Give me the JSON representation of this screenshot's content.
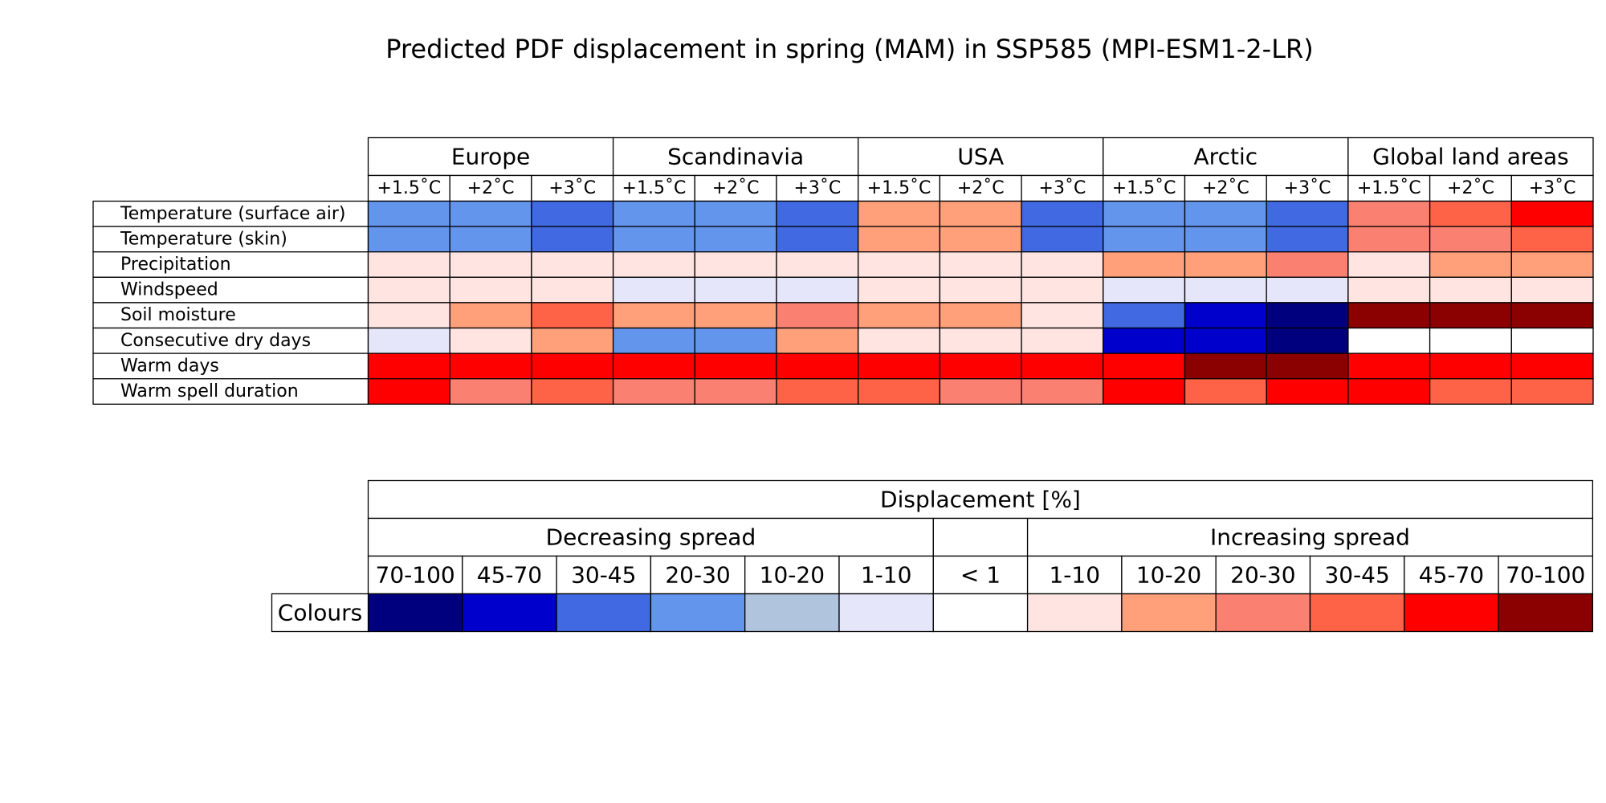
{
  "chart_data": {
    "type": "heatmap",
    "title": "Predicted PDF displacement in spring (MAM) in SSP585 (MPI-ESM1-2-LR)",
    "regions": [
      "Europe",
      "Scandinavia",
      "USA",
      "Arctic",
      "Global land areas"
    ],
    "warming_levels": [
      "+1.5˚C",
      "+2˚C",
      "+3˚C"
    ],
    "variables": [
      "Temperature (surface air)",
      "Temperature (skin)",
      "Precipitation",
      "Windspeed",
      "Soil moisture",
      "Consecutive dry days",
      "Warm days",
      "Warm spell duration"
    ],
    "cells": [
      [
        "d20-30",
        "d20-30",
        "d30-45",
        "d20-30",
        "d20-30",
        "d30-45",
        "i10-20",
        "i10-20",
        "d30-45",
        "d20-30",
        "d20-30",
        "d30-45",
        "i20-30",
        "i30-45",
        "i45-70"
      ],
      [
        "d20-30",
        "d20-30",
        "d30-45",
        "d20-30",
        "d20-30",
        "d30-45",
        "i10-20",
        "i10-20",
        "d30-45",
        "d20-30",
        "d20-30",
        "d30-45",
        "i20-30",
        "i20-30",
        "i30-45"
      ],
      [
        "i1-10",
        "i1-10",
        "i1-10",
        "i1-10",
        "i1-10",
        "i1-10",
        "i1-10",
        "i1-10",
        "i1-10",
        "i10-20",
        "i10-20",
        "i20-30",
        "i1-10",
        "i10-20",
        "i10-20"
      ],
      [
        "i1-10",
        "i1-10",
        "i1-10",
        "d1-10",
        "d1-10",
        "d1-10",
        "i1-10",
        "i1-10",
        "i1-10",
        "d1-10",
        "d1-10",
        "d1-10",
        "i1-10",
        "i1-10",
        "i1-10"
      ],
      [
        "i1-10",
        "i10-20",
        "i30-45",
        "i10-20",
        "i10-20",
        "i20-30",
        "i10-20",
        "i10-20",
        "i1-10",
        "d30-45",
        "d45-70",
        "d70-100",
        "i70-100",
        "i70-100",
        "i70-100"
      ],
      [
        "d1-10",
        "i1-10",
        "i10-20",
        "d20-30",
        "d20-30",
        "i10-20",
        "i1-10",
        "i1-10",
        "i1-10",
        "d45-70",
        "d45-70",
        "d70-100",
        "n<1",
        "n<1",
        "n<1"
      ],
      [
        "i45-70",
        "i45-70",
        "i45-70",
        "i45-70",
        "i45-70",
        "i45-70",
        "i45-70",
        "i45-70",
        "i45-70",
        "i45-70",
        "i70-100",
        "i70-100",
        "i45-70",
        "i45-70",
        "i45-70"
      ],
      [
        "i45-70",
        "i20-30",
        "i30-45",
        "i20-30",
        "i20-30",
        "i30-45",
        "i30-45",
        "i20-30",
        "i20-30",
        "i45-70",
        "i30-45",
        "i45-70",
        "i45-70",
        "i30-45",
        "i30-45"
      ]
    ],
    "legend": {
      "title": "Displacement [%]",
      "decreasing_label": "Decreasing spread",
      "increasing_label": "Increasing spread",
      "row_label": "Colours",
      "bins": [
        {
          "key": "d70-100",
          "label": "70-100",
          "color": "#00007f"
        },
        {
          "key": "d45-70",
          "label": "45-70",
          "color": "#0000cd"
        },
        {
          "key": "d30-45",
          "label": "30-45",
          "color": "#4169e1"
        },
        {
          "key": "d20-30",
          "label": "20-30",
          "color": "#6495ed"
        },
        {
          "key": "d10-20",
          "label": "10-20",
          "color": "#b0c4de"
        },
        {
          "key": "d1-10",
          "label": "1-10",
          "color": "#e6e6fa"
        },
        {
          "key": "n<1",
          "label": "< 1",
          "color": "#ffffff"
        },
        {
          "key": "i1-10",
          "label": "1-10",
          "color": "#ffe4e1"
        },
        {
          "key": "i10-20",
          "label": "10-20",
          "color": "#ffa07a"
        },
        {
          "key": "i20-30",
          "label": "20-30",
          "color": "#fa8072"
        },
        {
          "key": "i30-45",
          "label": "30-45",
          "color": "#ff6347"
        },
        {
          "key": "i45-70",
          "label": "45-70",
          "color": "#ff0000"
        },
        {
          "key": "i70-100",
          "label": "70-100",
          "color": "#8b0000"
        }
      ]
    }
  }
}
